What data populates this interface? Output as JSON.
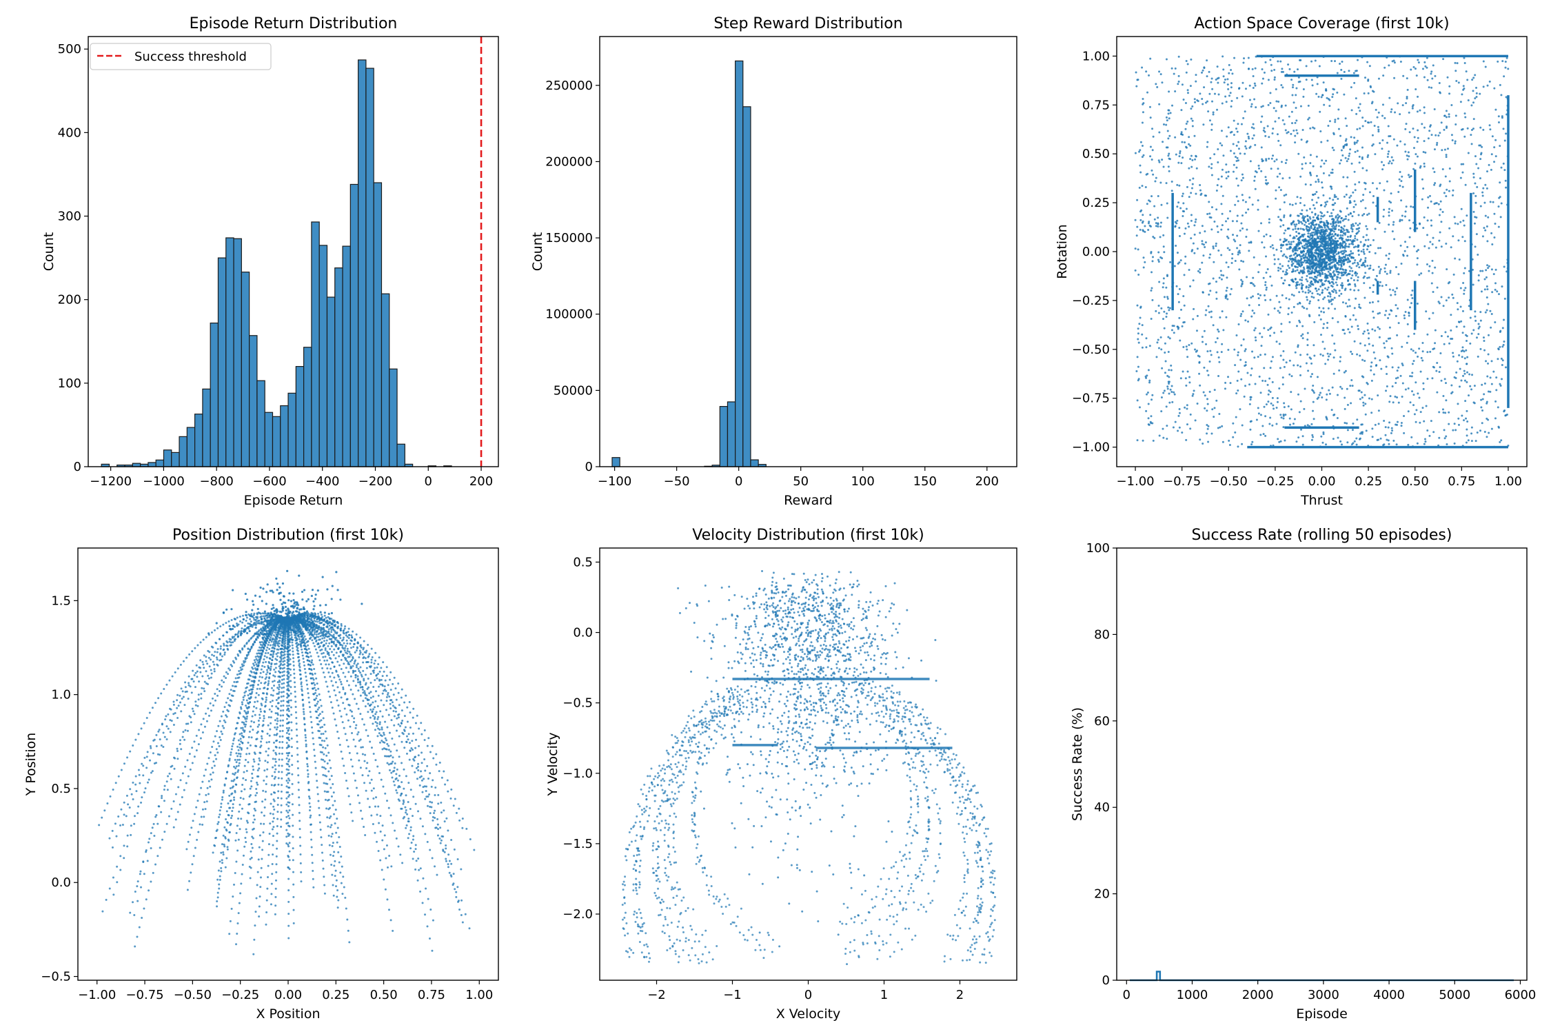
{
  "figure": {
    "background": "#ffffff",
    "bar_color": "#3f8dc4",
    "series_color": "#1f77b4",
    "threshold_color": "#e31a1c"
  },
  "chart_data": [
    {
      "id": "ret",
      "type": "bar",
      "title": "Episode Return Distribution",
      "xlabel": "Episode Return",
      "ylabel": "Count",
      "xlim": [
        -1285,
        265
      ],
      "ylim": [
        0,
        515
      ],
      "xticks": [
        -1200,
        -1000,
        -800,
        -600,
        -400,
        -200,
        0,
        200
      ],
      "xtick_labels": [
        "−1200",
        "−1000",
        "−800",
        "−600",
        "−400",
        "−200",
        "0",
        "200"
      ],
      "yticks": [
        0,
        100,
        200,
        300,
        400,
        500
      ],
      "ytick_labels": [
        "0",
        "100",
        "200",
        "300",
        "400",
        "500"
      ],
      "bin_start": -1235,
      "bin_width": 29.4,
      "values": [
        3,
        0,
        2,
        2,
        4,
        3,
        5,
        8,
        20,
        17,
        36,
        47,
        63,
        93,
        172,
        250,
        274,
        273,
        233,
        157,
        103,
        65,
        60,
        73,
        88,
        120,
        143,
        293,
        265,
        203,
        238,
        264,
        338,
        487,
        477,
        340,
        207,
        117,
        27,
        3,
        0,
        0,
        1,
        0,
        1
      ],
      "threshold": {
        "x": 200,
        "label": "Success threshold"
      }
    },
    {
      "id": "rew",
      "type": "bar",
      "title": "Step Reward Distribution",
      "xlabel": "Reward",
      "ylabel": "Count",
      "xlim": [
        -112,
        224
      ],
      "ylim": [
        0,
        282000
      ],
      "xticks": [
        -100,
        -50,
        0,
        50,
        100,
        150,
        200
      ],
      "xtick_labels": [
        "−100",
        "−50",
        "0",
        "50",
        "100",
        "150",
        "200"
      ],
      "yticks": [
        0,
        50000,
        100000,
        150000,
        200000,
        250000
      ],
      "ytick_labels": [
        "0",
        "50000",
        "100000",
        "150000",
        "200000",
        "250000"
      ],
      "bin_start": -102,
      "bin_width": 6.2,
      "values": [
        6000,
        0,
        0,
        0,
        0,
        0,
        0,
        0,
        0,
        0,
        0,
        0,
        300,
        1000,
        39500,
        42500,
        266000,
        236000,
        4500,
        1500
      ]
    },
    {
      "id": "act",
      "type": "scatter",
      "title": "Action Space Coverage (first 10k)",
      "xlabel": "Thrust",
      "ylabel": "Rotation",
      "xlim": [
        -1.1,
        1.1
      ],
      "ylim": [
        -1.1,
        1.1
      ],
      "xticks": [
        -1.0,
        -0.75,
        -0.5,
        -0.25,
        0.0,
        0.25,
        0.5,
        0.75,
        1.0
      ],
      "xtick_labels": [
        "−1.00",
        "−0.75",
        "−0.50",
        "−0.25",
        "0.00",
        "0.25",
        "0.50",
        "0.75",
        "1.00"
      ],
      "yticks": [
        -1.0,
        -0.75,
        -0.5,
        -0.25,
        0.0,
        0.25,
        0.5,
        0.75,
        1.0
      ],
      "ytick_labels": [
        "−1.00",
        "−0.75",
        "−0.50",
        "−0.25",
        "0.00",
        "0.25",
        "0.50",
        "0.75",
        "1.00"
      ],
      "segments": [
        {
          "from": [
            -0.35,
            1.0
          ],
          "to": [
            1.0,
            1.0
          ]
        },
        {
          "from": [
            -0.2,
            0.9
          ],
          "to": [
            0.2,
            0.9
          ]
        },
        {
          "from": [
            -0.2,
            -0.9
          ],
          "to": [
            0.2,
            -0.9
          ]
        },
        {
          "from": [
            -0.4,
            -1.0
          ],
          "to": [
            1.0,
            -1.0
          ]
        },
        {
          "from": [
            -0.8,
            -0.3
          ],
          "to": [
            -0.8,
            0.3
          ]
        },
        {
          "from": [
            0.8,
            -0.3
          ],
          "to": [
            0.8,
            0.3
          ]
        },
        {
          "from": [
            0.5,
            0.1
          ],
          "to": [
            0.5,
            0.42
          ]
        },
        {
          "from": [
            0.5,
            -0.15
          ],
          "to": [
            0.5,
            -0.4
          ]
        },
        {
          "from": [
            0.3,
            0.15
          ],
          "to": [
            0.3,
            0.28
          ]
        },
        {
          "from": [
            0.3,
            -0.15
          ],
          "to": [
            0.3,
            -0.22
          ]
        },
        {
          "from": [
            1.0,
            -0.8
          ],
          "to": [
            1.0,
            0.8
          ]
        }
      ],
      "uniform_points": 2600,
      "gaussian_cluster": {
        "center": [
          0.0,
          0.0
        ],
        "sd": 0.1,
        "points": 1400
      }
    },
    {
      "id": "pos",
      "type": "scatter",
      "title": "Position Distribution (first 10k)",
      "xlabel": "X Position",
      "ylabel": "Y Position",
      "xlim": [
        -1.1,
        1.1
      ],
      "ylim": [
        -0.52,
        1.78
      ],
      "xticks": [
        -1.0,
        -0.75,
        -0.5,
        -0.25,
        0.0,
        0.25,
        0.5,
        0.75,
        1.0
      ],
      "xtick_labels": [
        "−1.00",
        "−0.75",
        "−0.50",
        "−0.25",
        "0.00",
        "0.25",
        "0.50",
        "0.75",
        "1.00"
      ],
      "yticks": [
        -0.5,
        0.0,
        0.5,
        1.0,
        1.5
      ],
      "ytick_labels": [
        "−0.5",
        "0.0",
        "0.5",
        "1.0",
        "1.5"
      ],
      "trajectories": {
        "start": [
          0.0,
          1.4
        ],
        "count": 70,
        "x_end_range": [
          -1.0,
          1.0
        ],
        "y_end_range": [
          -0.4,
          0.4
        ],
        "peak_y": 1.68
      }
    },
    {
      "id": "vel",
      "type": "scatter",
      "title": "Velocity Distribution (first 10k)",
      "xlabel": "X Velocity",
      "ylabel": "Y Velocity",
      "xlim": [
        -2.75,
        2.75
      ],
      "ylim": [
        -2.47,
        0.6
      ],
      "xticks": [
        -2,
        -1,
        0,
        1,
        2
      ],
      "xtick_labels": [
        "−2",
        "−1",
        "0",
        "1",
        "2"
      ],
      "yticks": [
        -2.0,
        -1.5,
        -1.0,
        -0.5,
        0.0,
        0.5
      ],
      "ytick_labels": [
        "−2.0",
        "−1.5",
        "−1.0",
        "−0.5",
        "0.0",
        "0.5"
      ],
      "bands": [
        {
          "x": [
            -1.0,
            1.6
          ],
          "y": -0.33
        },
        {
          "x": [
            -1.0,
            -0.4
          ],
          "y": -0.8
        },
        {
          "x": [
            0.1,
            1.9
          ],
          "y": -0.82
        }
      ],
      "arcs": {
        "count": 28,
        "x_range": [
          -2.6,
          2.6
        ],
        "y_bottom": -2.3
      }
    },
    {
      "id": "succ",
      "type": "line",
      "title": "Success Rate (rolling 50 episodes)",
      "xlabel": "Episode",
      "ylabel": "Success Rate (%)",
      "xlim": [
        -150,
        6100
      ],
      "ylim": [
        0,
        100
      ],
      "xticks": [
        0,
        1000,
        2000,
        3000,
        4000,
        5000,
        6000
      ],
      "xtick_labels": [
        "0",
        "1000",
        "2000",
        "3000",
        "4000",
        "5000",
        "6000"
      ],
      "yticks": [
        0,
        20,
        40,
        60,
        80,
        100
      ],
      "ytick_labels": [
        "0",
        "20",
        "40",
        "60",
        "80",
        "100"
      ],
      "x": [
        50,
        460,
        460,
        510,
        510,
        5900
      ],
      "y": [
        0,
        0,
        2,
        2,
        0,
        0
      ]
    }
  ]
}
